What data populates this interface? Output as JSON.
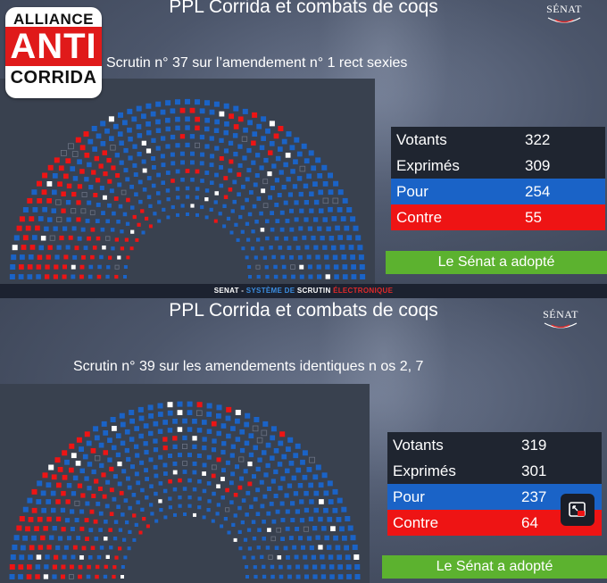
{
  "logo": {
    "line1": "ALLIANCE",
    "line2": "ANTI",
    "line3": "CORRIDA"
  },
  "banner": {
    "part1": "SENAT - ",
    "part2": "SYSTÈME DE ",
    "part3": "SCRUTIN ",
    "part4": "ÉLECTRONIQUE"
  },
  "senat_logo": "SÉNAT",
  "colors": {
    "pour": "#1a63c7",
    "contre": "#ee1414",
    "adopted": "#5cb22f",
    "abstention": "#ffffff",
    "absent": "#6b7282"
  },
  "panels": [
    {
      "title": "PPL Corrida et combats de coqs",
      "subtitle": "Scrutin n° 37 sur l’amendement n°  1 rect sexies",
      "results": [
        {
          "label": "Votants",
          "value": "322"
        },
        {
          "label": "Exprimés",
          "value": "309"
        },
        {
          "label": "Pour",
          "value": "254"
        },
        {
          "label": "Contre",
          "value": "55"
        }
      ],
      "outcome": "Le Sénat a adopté"
    },
    {
      "title": "PPL Corrida et combats de coqs",
      "subtitle": "Scrutin n° 39 sur les amendements identiques n os  2, 7",
      "results": [
        {
          "label": "Votants",
          "value": "319"
        },
        {
          "label": "Exprimés",
          "value": "301"
        },
        {
          "label": "Pour",
          "value": "237"
        },
        {
          "label": "Contre",
          "value": "64"
        }
      ],
      "outcome": "Le Sénat a adopté"
    }
  ],
  "pip_icon": "picture-in-picture-icon"
}
